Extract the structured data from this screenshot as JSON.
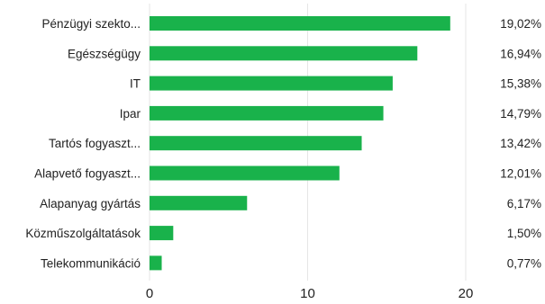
{
  "chart_data": {
    "type": "bar",
    "orientation": "horizontal",
    "categories": [
      "Pénzügyi szekto...",
      "Egészségügy",
      "IT",
      "Ipar",
      "Tartós fogyaszt...",
      "Alapvető fogyaszt...",
      "Alapanyag gyártás",
      "Közműszolgáltatások",
      "Telekommunikáció"
    ],
    "values": [
      19.02,
      16.94,
      15.38,
      14.79,
      13.42,
      12.01,
      6.17,
      1.5,
      0.77
    ],
    "value_labels": [
      "19,02%",
      "16,94%",
      "15,38%",
      "14,79%",
      "13,42%",
      "12,01%",
      "6,17%",
      "1,50%",
      "0,77%"
    ],
    "xlim": [
      0,
      20
    ],
    "x_ticks": [
      "0",
      "10",
      "20"
    ],
    "title": "",
    "xlabel": "",
    "ylabel": "",
    "grid": true,
    "bar_color": "#19b24b",
    "grid_color": "#e6e6e6"
  }
}
